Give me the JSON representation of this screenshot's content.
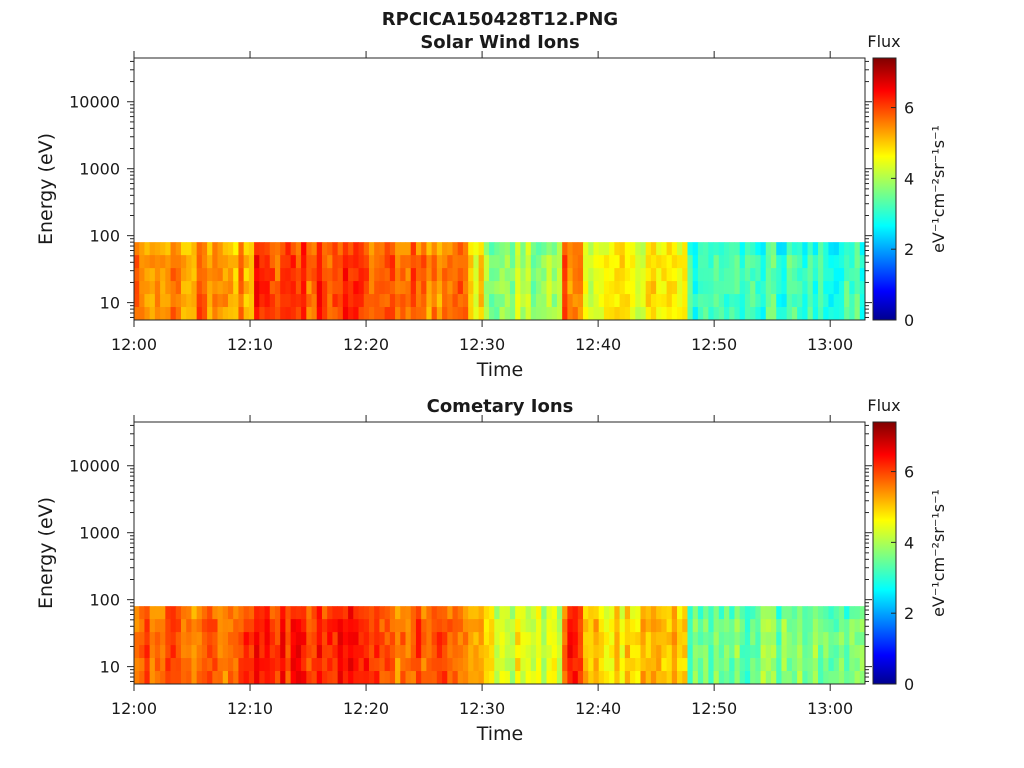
{
  "figure": {
    "title": "RPCICA150428T12.PNG"
  },
  "colormap": "jet",
  "chart_data": [
    {
      "type": "heatmap",
      "title": "Solar Wind Ions",
      "xlabel": "Time",
      "ylabel": "Energy (eV)",
      "xticks": [
        "12:00",
        "12:10",
        "12:20",
        "12:30",
        "12:40",
        "12:50",
        "13:00"
      ],
      "xlim_minutes": [
        0,
        63
      ],
      "yscale": "log",
      "ylim": [
        5.5,
        45000
      ],
      "yticks": [
        10,
        100,
        1000,
        10000
      ],
      "ytick_labels": [
        "10",
        "100",
        "1000",
        "10000"
      ],
      "data_energy_range": [
        5.5,
        80
      ],
      "colorbar": {
        "title": "Flux",
        "label": "eV⁻¹cm⁻²sr⁻¹s⁻¹",
        "range": [
          0,
          7.4
        ],
        "ticks": [
          "0",
          "2",
          "4",
          "6"
        ]
      },
      "flux_segments": [
        {
          "t_start": 0,
          "t_end": 10,
          "flux": 5.5
        },
        {
          "t_start": 10,
          "t_end": 20,
          "flux": 6.0
        },
        {
          "t_start": 20,
          "t_end": 28.5,
          "flux": 5.6
        },
        {
          "t_start": 28.5,
          "t_end": 30,
          "flux": 4.8
        },
        {
          "t_start": 30,
          "t_end": 36.5,
          "flux": 4.0
        },
        {
          "t_start": 36.5,
          "t_end": 38.5,
          "flux": 5.7
        },
        {
          "t_start": 38.5,
          "t_end": 47.5,
          "flux": 4.6
        },
        {
          "t_start": 47.5,
          "t_end": 63,
          "flux": 3.2
        }
      ]
    },
    {
      "type": "heatmap",
      "title": "Cometary Ions",
      "xlabel": "Time",
      "ylabel": "Energy (eV)",
      "xticks": [
        "12:00",
        "12:10",
        "12:20",
        "12:30",
        "12:40",
        "12:50",
        "13:00"
      ],
      "xlim_minutes": [
        0,
        63
      ],
      "yscale": "log",
      "ylim": [
        5.5,
        45000
      ],
      "yticks": [
        10,
        100,
        1000,
        10000
      ],
      "ytick_labels": [
        "10",
        "100",
        "1000",
        "10000"
      ],
      "data_energy_range": [
        5.5,
        80
      ],
      "colorbar": {
        "title": "Flux",
        "label": "eV⁻¹cm⁻²sr⁻¹s⁻¹",
        "range": [
          0,
          7.4
        ],
        "ticks": [
          "0",
          "2",
          "4",
          "6"
        ]
      },
      "flux_segments": [
        {
          "t_start": 0,
          "t_end": 10,
          "flux": 5.8
        },
        {
          "t_start": 10,
          "t_end": 20,
          "flux": 6.2
        },
        {
          "t_start": 20,
          "t_end": 28.5,
          "flux": 5.8
        },
        {
          "t_start": 28.5,
          "t_end": 30,
          "flux": 5.0
        },
        {
          "t_start": 30,
          "t_end": 36.5,
          "flux": 4.4
        },
        {
          "t_start": 36.5,
          "t_end": 38.5,
          "flux": 6.0
        },
        {
          "t_start": 38.5,
          "t_end": 47.5,
          "flux": 5.0
        },
        {
          "t_start": 47.5,
          "t_end": 63,
          "flux": 3.6
        }
      ]
    }
  ]
}
